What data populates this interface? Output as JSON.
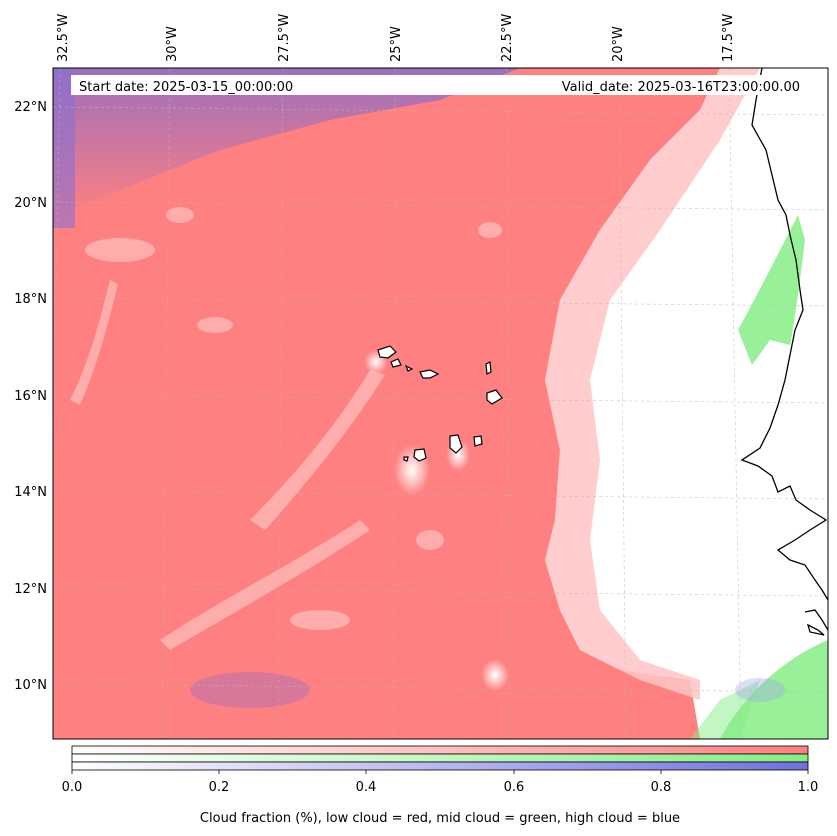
{
  "map": {
    "lon_labels": [
      "32.5°W",
      "30°W",
      "27.5°W",
      "25°W",
      "22.5°W",
      "20°W",
      "17.5°W"
    ],
    "lat_labels": [
      "22°N",
      "20°N",
      "18°N",
      "16°N",
      "14°N",
      "12°N",
      "10°N"
    ],
    "start_date": "Start date: 2025-03-15_00:00:00",
    "valid_date": "Valid_date: 2025-03-16T23:00:00.00"
  },
  "colorbar": {
    "ticks": [
      "0.0",
      "0.2",
      "0.4",
      "0.6",
      "0.8",
      "1.0"
    ],
    "label": "Cloud fraction (%), low cloud = red, mid cloud = green, high cloud = blue",
    "colors": {
      "low": "#ff7f7f",
      "mid": "#86ee86",
      "high": "#7070e0"
    }
  }
}
